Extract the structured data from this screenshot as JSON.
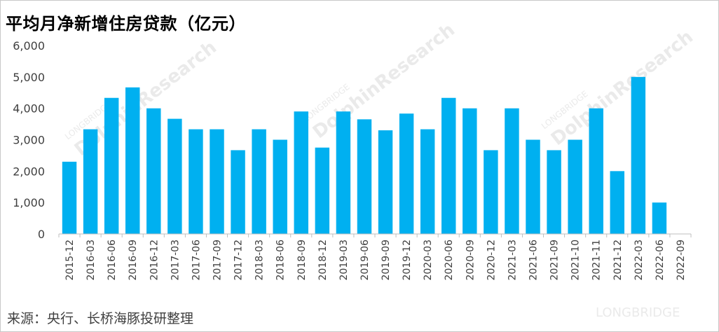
{
  "title": "平均月净新增住房贷款（亿元）",
  "source": "来源：央行、长桥海豚投研整理",
  "watermark": {
    "brand": "DolphinResearch",
    "logo": "LONGBRIDGE"
  },
  "colors": {
    "bar": "#00b0f0",
    "axis": "#bfbfbf",
    "text": "#404040"
  },
  "chart_data": {
    "type": "bar",
    "title": "平均月净新增住房贷款（亿元）",
    "xlabel": "",
    "ylabel": "",
    "ylim": [
      0,
      6000
    ],
    "yticks": [
      0,
      1000,
      2000,
      3000,
      4000,
      5000,
      6000
    ],
    "ytick_labels": [
      "0",
      "1,000",
      "2,000",
      "3,000",
      "4,000",
      "5,000",
      "6,000"
    ],
    "grid": false,
    "legend": "none",
    "categories": [
      "2015-12",
      "2016-03",
      "2016-06",
      "2016-09",
      "2016-12",
      "2017-03",
      "2017-06",
      "2017-09",
      "2017-12",
      "2018-03",
      "2018-06",
      "2018-09",
      "2018-12",
      "2019-03",
      "2019-06",
      "2019-09",
      "2019-12",
      "2020-03",
      "2020-06",
      "2020-09",
      "2020-12",
      "2021-03",
      "2021-06",
      "2021-09",
      "2021-10",
      "2021-11",
      "2021-12",
      "2022-03",
      "2022-06",
      "2022-09"
    ],
    "values": [
      2300,
      3333,
      4333,
      4667,
      4000,
      3667,
      3333,
      3333,
      2667,
      3333,
      3000,
      3900,
      2750,
      3900,
      3650,
      3300,
      3833,
      3333,
      4333,
      4000,
      2667,
      4000,
      3000,
      2667,
      3000,
      4000,
      2000,
      5000,
      1000,
      null
    ]
  }
}
